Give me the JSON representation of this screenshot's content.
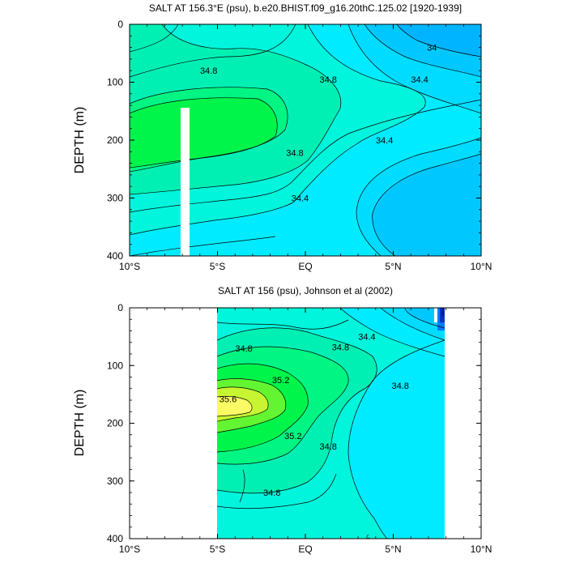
{
  "colors": {
    "band_33_8": "#00b4ff",
    "band_34_0": "#00c8ff",
    "band_34_2": "#00dcff",
    "band_34_4": "#00ebff",
    "band_34_6": "#00f5dc",
    "band_34_8": "#00f0b4",
    "band_35_0": "#00f582",
    "band_35_2": "#00f54b",
    "band_35_4": "#64f532",
    "band_35_6": "#c8f532",
    "band_35_8": "#fafa64",
    "fresh_1": "#0078ff",
    "fresh_2": "#0032c8",
    "fresh_3": "#0a1ea0"
  },
  "chart_data": [
    {
      "type": "contour",
      "title": "SALT AT 156.3°E (psu), b.e20.BHIST.f09_g16.20thC.125.02 [1920-1939]",
      "ylabel": "DEPTH (m)",
      "xlim": [
        -10,
        10
      ],
      "ylim": [
        400,
        0
      ],
      "xticks": [
        "10°S",
        "5°S",
        "EQ",
        "5°N",
        "10°N"
      ],
      "yticks": [
        "0",
        "100",
        "200",
        "300",
        "400"
      ],
      "contour_labels": [
        {
          "text": "34",
          "lon": 7.2,
          "depth": 40
        },
        {
          "text": "34.8",
          "lon": -5.5,
          "depth": 80
        },
        {
          "text": "34.8",
          "lon": 1.3,
          "depth": 95
        },
        {
          "text": "34.4",
          "lon": 6.5,
          "depth": 95
        },
        {
          "text": "34.8",
          "lon": -0.6,
          "depth": 222
        },
        {
          "text": "34.4",
          "lon": 4.5,
          "depth": 200
        },
        {
          "text": "34.4",
          "lon": -0.3,
          "depth": 300
        }
      ]
    },
    {
      "type": "contour",
      "title": "SALT AT 156 (psu), Johnson et al (2002)",
      "ylabel": "DEPTH (m)",
      "xlim": [
        -10,
        10
      ],
      "ylim": [
        400,
        0
      ],
      "xticks": [
        "10°S",
        "5°S",
        "EQ",
        "5°N",
        "10°N"
      ],
      "yticks": [
        "0",
        "100",
        "200",
        "300",
        "400"
      ],
      "contour_labels": [
        {
          "text": "34.4",
          "lon": 3.5,
          "depth": 50
        },
        {
          "text": "34.8",
          "lon": -3.5,
          "depth": 70
        },
        {
          "text": "34.8",
          "lon": 2.0,
          "depth": 68
        },
        {
          "text": "35.2",
          "lon": -1.4,
          "depth": 125
        },
        {
          "text": "34.8",
          "lon": 5.4,
          "depth": 135
        },
        {
          "text": "35.6",
          "lon": -4.4,
          "depth": 158
        },
        {
          "text": "35.2",
          "lon": -0.7,
          "depth": 222
        },
        {
          "text": "34.8",
          "lon": 1.3,
          "depth": 240
        },
        {
          "text": "34.8",
          "lon": -1.9,
          "depth": 320
        }
      ]
    }
  ]
}
